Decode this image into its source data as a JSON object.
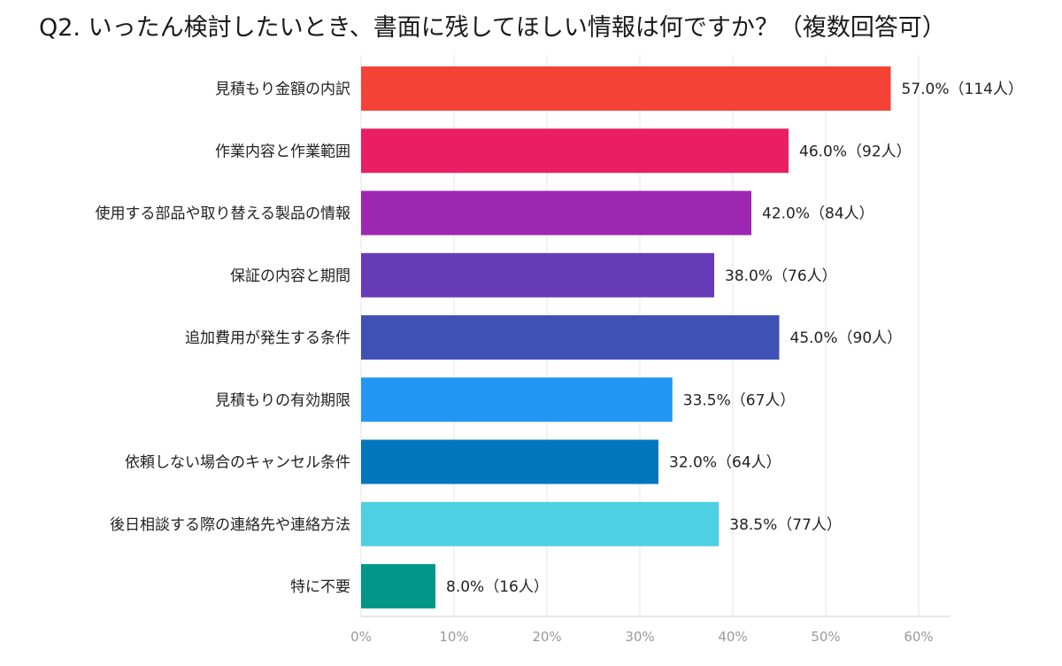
{
  "chart_data": {
    "type": "bar",
    "orientation": "horizontal",
    "title": "Q2. いったん検討したいとき、書面に残してほしい情報は何ですか？（複数回答可）",
    "categories": [
      "見積もり金額の内訳",
      "作業内容と作業範囲",
      "使用する部品や取り替える製品の情報",
      "保証の内容と期間",
      "追加費用が発生する条件",
      "見積もりの有効期限",
      "依頼しない場合のキャンセル条件",
      "後日相談する際の連絡先や連絡方法",
      "特に不要"
    ],
    "values": [
      57.0,
      46.0,
      42.0,
      38.0,
      45.0,
      33.5,
      32.0,
      38.5,
      8.0
    ],
    "data_labels": [
      "57.0%（114人）",
      "46.0%（92人）",
      "42.0%（84人）",
      "38.0%（76人）",
      "45.0%（90人）",
      "33.5%（67人）",
      "32.0%（64人）",
      "38.5%（77人）",
      "8.0%（16人）"
    ],
    "colors": [
      "#f44336",
      "#e91e63",
      "#9c27b0",
      "#673ab7",
      "#3f51b5",
      "#2196f3",
      "#0277bd",
      "#4dd0e1",
      "#009688"
    ],
    "xlim": [
      0,
      60
    ],
    "x_ticks": [
      "0%",
      "10%",
      "20%",
      "30%",
      "40%",
      "50%",
      "60%"
    ],
    "xlabel": "",
    "ylabel": "",
    "grid": true,
    "legend": false
  }
}
